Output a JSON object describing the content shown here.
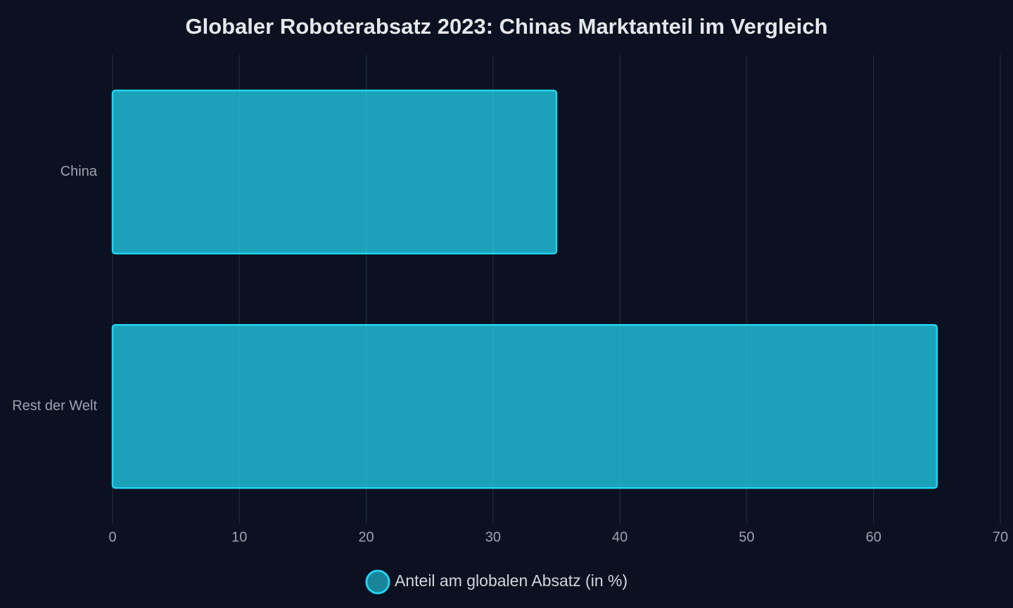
{
  "chart_data": {
    "type": "barh",
    "title": "Globaler Roboterabsatz 2023: Chinas Marktanteil im Vergleich",
    "categories": [
      "China",
      "Rest der Welt"
    ],
    "series": [
      {
        "name": "Anteil am globalen Absatz (in %)",
        "color": "#22d3ee",
        "values": [
          35,
          65
        ]
      }
    ],
    "xlim": [
      0,
      70
    ],
    "xticks": [
      0,
      10,
      20,
      30,
      40,
      50,
      60,
      70
    ],
    "grid": true
  }
}
